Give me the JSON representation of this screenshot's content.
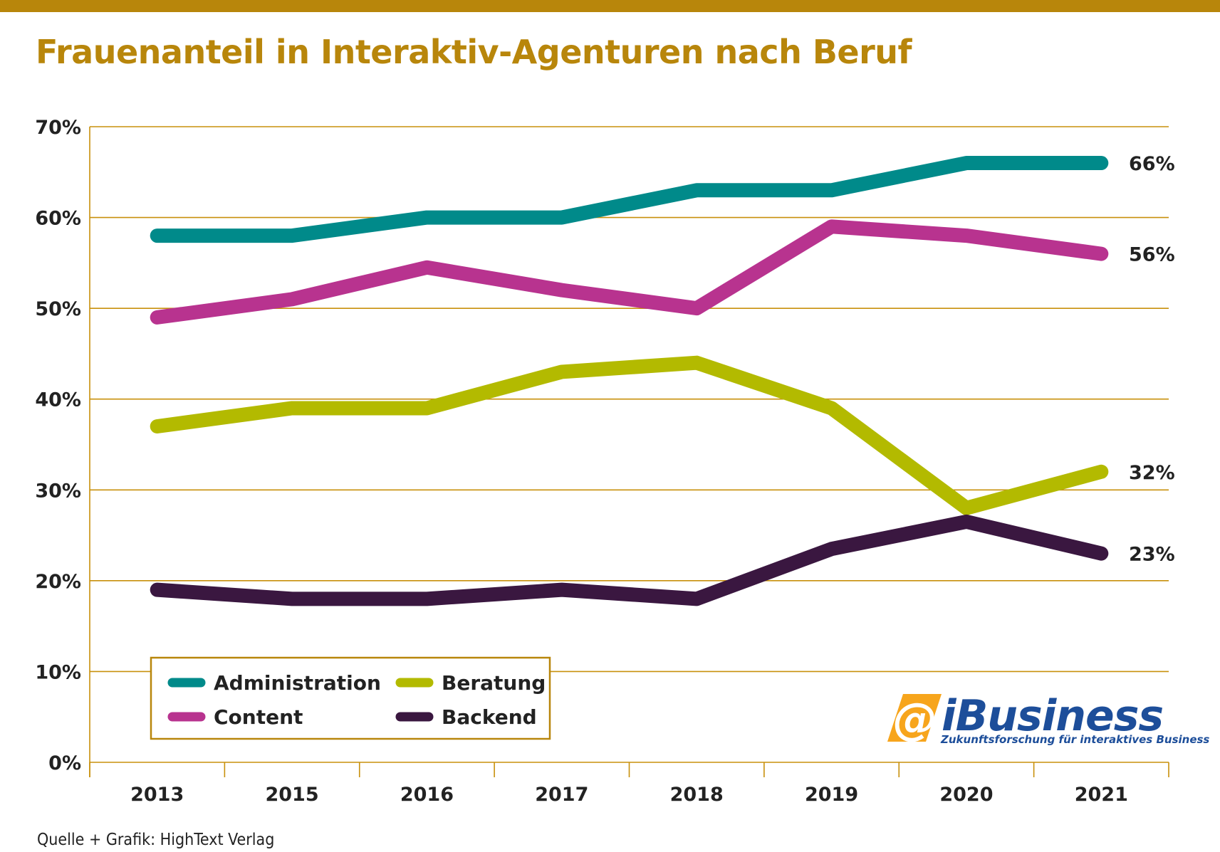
{
  "title": "Frauenanteil in Interaktiv-Agenturen nach Beruf",
  "source": "Quelle + Grafik: HighText Verlag",
  "logo": {
    "name": "iBusiness",
    "tagline": "Zukunftsforschung für interaktives Business",
    "color": "#1d4e9a",
    "accent": "#f7a51c"
  },
  "colors": {
    "accent": "#b8860b",
    "grid": "#c8900c"
  },
  "chart_data": {
    "type": "line",
    "title": "Frauenanteil in Interaktiv-Agenturen nach Beruf",
    "categories": [
      "2013",
      "2015",
      "2016",
      "2017",
      "2018",
      "2019",
      "2020",
      "2021"
    ],
    "ylim": [
      0,
      70
    ],
    "yticks": [
      0,
      10,
      20,
      30,
      40,
      50,
      60,
      70
    ],
    "ytick_labels": [
      "0%",
      "10%",
      "20%",
      "30%",
      "40%",
      "50%",
      "60%",
      "70%"
    ],
    "grid": true,
    "legend_position": "bottom-left",
    "series": [
      {
        "name": "Administration",
        "color": "#008a8a",
        "values": [
          58,
          58,
          60,
          60,
          63,
          63,
          66,
          66
        ],
        "end_label": "66%"
      },
      {
        "name": "Content",
        "color": "#b8338f",
        "values": [
          49,
          51,
          54.5,
          52,
          50,
          59,
          58,
          56
        ],
        "end_label": "56%"
      },
      {
        "name": "Beratung",
        "color": "#b3ba00",
        "values": [
          37,
          39,
          39,
          43,
          44,
          39,
          28,
          32
        ],
        "end_label": "32%"
      },
      {
        "name": "Backend",
        "color": "#3a1740",
        "values": [
          19,
          18,
          18,
          19,
          18,
          23.5,
          26.5,
          23
        ],
        "end_label": "23%"
      }
    ]
  }
}
